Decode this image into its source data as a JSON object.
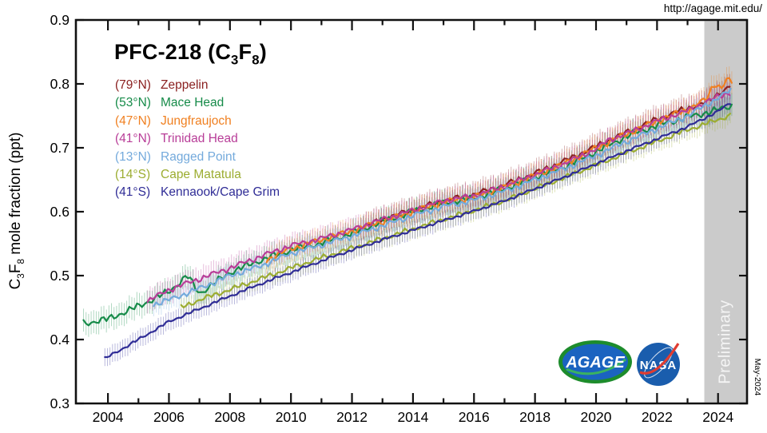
{
  "page": {
    "url_label": "http://agage.mit.edu/",
    "date_stamp": "May-2024",
    "preliminary_label": "Preliminary"
  },
  "logos": {
    "agage_text": "AGAGE",
    "nasa_text": "NASA",
    "agage_ring_color": "#1d8c2c",
    "agage_fill_color": "#1b63c0",
    "nasa_fill_color": "#1a5dad",
    "nasa_swoosh_color": "#e03c31"
  },
  "chart_data": {
    "type": "line",
    "title_plain": "PFC-218 (C3F8)",
    "title_parts": {
      "p1": "PFC-218 (C",
      "s1": "3",
      "p2": "F",
      "s2": "8",
      "p3": ")"
    },
    "ylabel_plain": "C3F8 mole fraction (ppt)",
    "ylabel_parts": {
      "p1": "C",
      "s1": "3",
      "p2": "F",
      "s2": "8",
      "p3": " mole fraction (ppt)"
    },
    "xlim": [
      2002.95,
      2024.95
    ],
    "ylim": [
      0.3,
      0.9
    ],
    "y_ticks": [
      0.9,
      0.8,
      0.7,
      0.6,
      0.5,
      0.4,
      0.3
    ],
    "x_major_ticks": [
      2004,
      2006,
      2008,
      2010,
      2012,
      2014,
      2016,
      2018,
      2020,
      2022,
      2024
    ],
    "x_minor_ticks": [
      2003,
      2005,
      2007,
      2009,
      2011,
      2013,
      2015,
      2017,
      2019,
      2021,
      2023
    ],
    "grid": false,
    "legend_position": "upper-left",
    "axis_color": "#111111",
    "preliminary_band": {
      "start": 2023.55,
      "end": 2024.93,
      "color": "#cbcbcb"
    },
    "series": [
      {
        "key": "zeppelin",
        "lat": "(79°N)",
        "name": "Zeppelin",
        "color": "#8B2121",
        "err": 0.02,
        "jitter": 0.006,
        "anchors": {
          "years": [
            2012.3,
            2013,
            2014,
            2015,
            2016,
            2017,
            2018,
            2019,
            2020,
            2021,
            2022,
            2023,
            2023.7,
            2024.0,
            2024.2,
            2024.45
          ],
          "values": [
            0.575,
            0.588,
            0.603,
            0.617,
            0.627,
            0.642,
            0.66,
            0.68,
            0.702,
            0.724,
            0.745,
            0.762,
            0.772,
            0.785,
            0.79,
            0.798
          ]
        }
      },
      {
        "key": "mace_head",
        "lat": "(53°N)",
        "name": "Mace Head",
        "color": "#168B49",
        "err": 0.018,
        "jitter": 0.007,
        "anchors": {
          "years": [
            2003.2,
            2004,
            2005,
            2006,
            2006.6,
            2007,
            2008,
            2009,
            2010,
            2011,
            2012,
            2013,
            2014,
            2015,
            2016,
            2017,
            2018,
            2019,
            2020,
            2021,
            2022,
            2023,
            2023.8,
            2024.45
          ],
          "values": [
            0.425,
            0.432,
            0.452,
            0.475,
            0.5,
            0.472,
            0.505,
            0.524,
            0.54,
            0.551,
            0.566,
            0.585,
            0.6,
            0.614,
            0.621,
            0.636,
            0.654,
            0.671,
            0.694,
            0.718,
            0.735,
            0.748,
            0.757,
            0.766
          ]
        }
      },
      {
        "key": "jungfraujoch",
        "lat": "(47°N)",
        "name": "Jungfraujoch",
        "color": "#F08021",
        "err": 0.018,
        "jitter": 0.007,
        "anchors": {
          "years": [
            2009.2,
            2010,
            2011,
            2012,
            2013,
            2014,
            2015,
            2016,
            2017,
            2018,
            2019,
            2020,
            2021,
            2022,
            2023,
            2023.6,
            2023.9,
            2024.1,
            2024.3,
            2024.45
          ],
          "values": [
            0.525,
            0.542,
            0.556,
            0.57,
            0.585,
            0.6,
            0.615,
            0.623,
            0.638,
            0.657,
            0.676,
            0.7,
            0.722,
            0.742,
            0.76,
            0.775,
            0.803,
            0.792,
            0.808,
            0.8
          ]
        }
      },
      {
        "key": "trinidad_head",
        "lat": "(41°N)",
        "name": "Trinidad Head",
        "color": "#B83D98",
        "err": 0.018,
        "jitter": 0.006,
        "anchors": {
          "years": [
            2005.3,
            2006,
            2007,
            2008,
            2009,
            2010,
            2011,
            2012,
            2013,
            2014,
            2015,
            2016,
            2017,
            2018,
            2019,
            2020,
            2020.4,
            2021,
            2022,
            2023,
            2024,
            2024.45
          ],
          "values": [
            0.46,
            0.478,
            0.495,
            0.512,
            0.53,
            0.547,
            0.558,
            0.572,
            0.588,
            0.602,
            0.617,
            0.625,
            0.64,
            0.658,
            0.676,
            0.698,
            0.712,
            0.722,
            0.742,
            0.758,
            0.78,
            0.788
          ]
        }
      },
      {
        "key": "ragged_point",
        "lat": "(13°N)",
        "name": "Ragged Point",
        "color": "#74AADC",
        "err": 0.016,
        "jitter": 0.006,
        "anchors": {
          "years": [
            2005.5,
            2006,
            2007,
            2008,
            2009,
            2010,
            2011,
            2012,
            2013,
            2014,
            2015,
            2016,
            2017,
            2018,
            2019,
            2020,
            2021,
            2022,
            2023,
            2024,
            2024.45
          ],
          "values": [
            0.455,
            0.462,
            0.48,
            0.5,
            0.515,
            0.535,
            0.548,
            0.562,
            0.578,
            0.594,
            0.608,
            0.618,
            0.632,
            0.65,
            0.668,
            0.688,
            0.71,
            0.73,
            0.75,
            0.778,
            0.791
          ]
        }
      },
      {
        "key": "cape_matatula",
        "lat": "(14°S)",
        "name": "Cape Matatula",
        "color": "#9CAD31",
        "err": 0.015,
        "jitter": 0.005,
        "anchors": {
          "years": [
            2006.4,
            2007,
            2008,
            2009,
            2010,
            2011,
            2012,
            2013,
            2014,
            2015,
            2016,
            2017,
            2018,
            2019,
            2020,
            2021,
            2022,
            2023,
            2024,
            2024.45
          ],
          "values": [
            0.45,
            0.462,
            0.478,
            0.495,
            0.512,
            0.528,
            0.543,
            0.558,
            0.573,
            0.588,
            0.602,
            0.617,
            0.636,
            0.654,
            0.673,
            0.692,
            0.71,
            0.728,
            0.744,
            0.752
          ]
        }
      },
      {
        "key": "kennaook_cape_grim",
        "lat": "(41°S)",
        "name": "Kennaook/Cape Grim",
        "color": "#2F2C96",
        "err": 0.014,
        "jitter": 0.003,
        "anchors": {
          "years": [
            2003.9,
            2005,
            2006,
            2007,
            2008,
            2009,
            2010,
            2011,
            2012,
            2013,
            2014,
            2015,
            2016,
            2017,
            2018,
            2019,
            2020,
            2021,
            2022,
            2023,
            2024,
            2024.45
          ],
          "values": [
            0.37,
            0.4,
            0.428,
            0.448,
            0.468,
            0.487,
            0.505,
            0.523,
            0.54,
            0.556,
            0.571,
            0.586,
            0.601,
            0.617,
            0.636,
            0.655,
            0.675,
            0.695,
            0.714,
            0.733,
            0.757,
            0.772
          ]
        }
      }
    ]
  }
}
